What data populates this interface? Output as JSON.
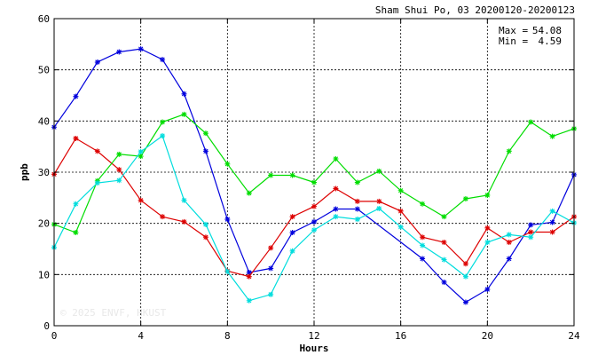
{
  "header": {
    "title": "Sham Shui Po, 03 20200120-20200123"
  },
  "stats": {
    "max_label": "Max =",
    "max_value": "54.08",
    "min_label": "Min =",
    "min_value": "4.59"
  },
  "watermark": "© 2025  ENVF, HKUST",
  "chart_data": {
    "type": "line",
    "xlabel": "Hours",
    "ylabel": "ppb",
    "xlim": [
      0,
      24
    ],
    "ylim": [
      0,
      60
    ],
    "xticks": [
      0,
      4,
      8,
      12,
      16,
      20,
      24
    ],
    "yticks": [
      0,
      10,
      20,
      30,
      40,
      50,
      60
    ],
    "grid": true,
    "x": [
      0,
      1,
      2,
      3,
      4,
      5,
      6,
      7,
      8,
      9,
      10,
      11,
      12,
      13,
      14,
      15,
      16,
      17,
      18,
      19,
      20,
      21,
      22,
      23,
      24
    ],
    "series": [
      {
        "color": "#0000dd",
        "values": [
          38.8,
          44.8,
          51.5,
          53.5,
          54.08,
          52.0,
          45.3,
          34.1,
          20.8,
          10.4,
          11.2,
          18.2,
          20.3,
          22.8,
          22.8,
          null,
          null,
          13.1,
          8.5,
          4.59,
          7.1,
          13.1,
          19.7,
          20.2,
          29.5
        ]
      },
      {
        "color": "#dd0000",
        "values": [
          29.6,
          36.6,
          34.1,
          30.5,
          24.5,
          21.3,
          20.3,
          17.3,
          10.7,
          9.6,
          15.2,
          21.3,
          23.3,
          26.8,
          24.3,
          24.3,
          22.4,
          17.3,
          16.3,
          12.1,
          19.1,
          16.3,
          18.3,
          18.3,
          21.3
        ]
      },
      {
        "color": "#00dd00",
        "values": [
          19.8,
          18.2,
          28.3,
          33.5,
          33.1,
          39.8,
          41.3,
          37.6,
          31.6,
          25.9,
          29.4,
          29.4,
          28.0,
          32.6,
          28.0,
          30.2,
          26.4,
          23.8,
          21.3,
          24.8,
          25.5,
          34.1,
          39.8,
          37.0,
          38.5
        ]
      },
      {
        "color": "#00dddd",
        "values": [
          15.3,
          23.8,
          27.9,
          28.4,
          34.0,
          37.1,
          24.5,
          19.8,
          10.6,
          4.9,
          6.1,
          14.6,
          18.7,
          21.3,
          20.8,
          22.9,
          19.3,
          15.7,
          12.9,
          9.6,
          16.3,
          17.8,
          17.3,
          22.4,
          20.1
        ]
      }
    ]
  }
}
